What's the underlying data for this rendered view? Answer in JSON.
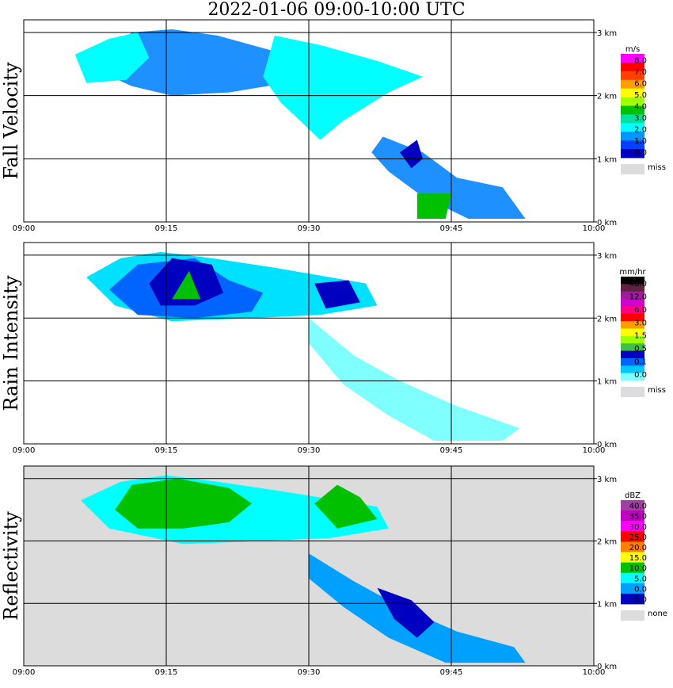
{
  "title": "2022-01-06   09:00-10:00 UTC",
  "chart_data": [
    {
      "type": "heatmap",
      "panel": "Fall Velocity",
      "ylabel": "Fall Velocity",
      "x_ticks": [
        "09:00",
        "09:15",
        "09:30",
        "09:45",
        "10:00"
      ],
      "y_ticks": [
        "0 km",
        "1 km",
        "2 km",
        "3 km"
      ],
      "xlim": [
        "09:00",
        "10:00"
      ],
      "ylim_km": [
        0,
        3.2
      ],
      "background": "none",
      "legend": {
        "unit": "m/s",
        "levels": [
          "8.0",
          "7.0",
          "6.0",
          "5.0",
          "4.0",
          "3.0",
          "2.0",
          "1.0",
          "0.0"
        ],
        "colors": [
          "#ff00ff",
          "#ff0000",
          "#ff4000",
          "#ffa000",
          "#ffff00",
          "#a0ff00",
          "#00c000",
          "#00e0a0",
          "#00ffff",
          "#0096ff",
          "#0040ff",
          "#0000c0"
        ],
        "missing_label": "miss",
        "missing_color": "#dcdcdc"
      },
      "features": [
        {
          "color": "#1e90ff",
          "pts": [
            [
              0.13,
              2.6
            ],
            [
              0.19,
              3.0
            ],
            [
              0.26,
              3.05
            ],
            [
              0.34,
              2.95
            ],
            [
              0.44,
              2.7
            ],
            [
              0.46,
              2.2
            ],
            [
              0.36,
              2.05
            ],
            [
              0.26,
              2.0
            ],
            [
              0.19,
              2.15
            ],
            [
              0.14,
              2.35
            ]
          ]
        },
        {
          "color": "#00ffff",
          "pts": [
            [
              0.09,
              2.65
            ],
            [
              0.15,
              2.9
            ],
            [
              0.2,
              3.0
            ],
            [
              0.22,
              2.6
            ],
            [
              0.18,
              2.25
            ],
            [
              0.11,
              2.2
            ]
          ]
        },
        {
          "color": "#00ffff",
          "pts": [
            [
              0.44,
              2.95
            ],
            [
              0.52,
              2.8
            ],
            [
              0.62,
              2.55
            ],
            [
              0.7,
              2.3
            ],
            [
              0.64,
              2.05
            ],
            [
              0.56,
              1.6
            ],
            [
              0.52,
              1.3
            ],
            [
              0.45,
              1.9
            ],
            [
              0.42,
              2.3
            ]
          ]
        },
        {
          "color": "#1e90ff",
          "pts": [
            [
              0.63,
              1.35
            ],
            [
              0.7,
              1.1
            ],
            [
              0.76,
              0.7
            ],
            [
              0.84,
              0.55
            ],
            [
              0.88,
              0.05
            ],
            [
              0.78,
              0.05
            ],
            [
              0.7,
              0.4
            ],
            [
              0.64,
              0.8
            ],
            [
              0.61,
              1.1
            ]
          ]
        },
        {
          "color": "#0000c0",
          "pts": [
            [
              0.66,
              1.1
            ],
            [
              0.69,
              1.3
            ],
            [
              0.7,
              1.0
            ],
            [
              0.68,
              0.85
            ]
          ]
        },
        {
          "color": "#00c000",
          "pts": [
            [
              0.69,
              0.45
            ],
            [
              0.75,
              0.45
            ],
            [
              0.74,
              0.05
            ],
            [
              0.69,
              0.05
            ]
          ]
        }
      ]
    },
    {
      "type": "heatmap",
      "panel": "Rain Intensity",
      "ylabel": "Rain Intensity",
      "x_ticks": [
        "09:00",
        "09:15",
        "09:30",
        "09:45",
        "10:00"
      ],
      "y_ticks": [
        "0 km",
        "1 km",
        "2 km",
        "3 km"
      ],
      "xlim": [
        "09:00",
        "10:00"
      ],
      "ylim_km": [
        0,
        3.2
      ],
      "background": "none",
      "legend": {
        "unit": "mm/hr",
        "levels": [
          "48.0",
          "12.0",
          "6.0",
          "3.0",
          "1.5",
          "0.5",
          "0.1",
          "0.0"
        ],
        "colors": [
          "#000000",
          "#602040",
          "#9c1c9c",
          "#d000d0",
          "#ff0080",
          "#ff0000",
          "#ffa000",
          "#ffff00",
          "#a0ff00",
          "#40c040",
          "#0000c0",
          "#0064ff",
          "#00c8ff",
          "#80ffff"
        ],
        "missing_label": "miss",
        "missing_color": "#dcdcdc"
      },
      "features": [
        {
          "color": "#00e0ff",
          "pts": [
            [
              0.11,
              2.65
            ],
            [
              0.17,
              2.95
            ],
            [
              0.24,
              3.05
            ],
            [
              0.33,
              2.95
            ],
            [
              0.44,
              2.8
            ],
            [
              0.6,
              2.55
            ],
            [
              0.62,
              2.2
            ],
            [
              0.52,
              2.05
            ],
            [
              0.4,
              2.0
            ],
            [
              0.26,
              1.95
            ],
            [
              0.16,
              2.2
            ]
          ]
        },
        {
          "color": "#0064ff",
          "pts": [
            [
              0.15,
              2.45
            ],
            [
              0.2,
              2.85
            ],
            [
              0.3,
              2.95
            ],
            [
              0.36,
              2.6
            ],
            [
              0.42,
              2.4
            ],
            [
              0.4,
              2.1
            ],
            [
              0.3,
              2.0
            ],
            [
              0.2,
              2.05
            ]
          ]
        },
        {
          "color": "#0000c0",
          "pts": [
            [
              0.22,
              2.55
            ],
            [
              0.26,
              2.95
            ],
            [
              0.33,
              2.85
            ],
            [
              0.35,
              2.4
            ],
            [
              0.3,
              2.2
            ],
            [
              0.24,
              2.2
            ]
          ]
        },
        {
          "color": "#0000c0",
          "pts": [
            [
              0.51,
              2.55
            ],
            [
              0.57,
              2.6
            ],
            [
              0.59,
              2.25
            ],
            [
              0.53,
              2.15
            ]
          ]
        },
        {
          "color": "#00c000",
          "pts": [
            [
              0.26,
              2.3
            ],
            [
              0.29,
              2.75
            ],
            [
              0.31,
              2.3
            ]
          ]
        },
        {
          "color": "#80ffff",
          "pts": [
            [
              0.5,
              2.0
            ],
            [
              0.58,
              1.4
            ],
            [
              0.66,
              1.0
            ],
            [
              0.76,
              0.6
            ],
            [
              0.87,
              0.25
            ],
            [
              0.84,
              0.05
            ],
            [
              0.72,
              0.05
            ],
            [
              0.64,
              0.45
            ],
            [
              0.56,
              0.95
            ],
            [
              0.5,
              1.6
            ]
          ]
        }
      ]
    },
    {
      "type": "heatmap",
      "panel": "Reflectivity",
      "ylabel": "Reflectivity",
      "x_ticks": [
        "09:00",
        "09:15",
        "09:30",
        "09:45",
        "10:00"
      ],
      "y_ticks": [
        "0 km",
        "1 km",
        "2 km",
        "3 km"
      ],
      "xlim": [
        "09:00",
        "10:00"
      ],
      "ylim_km": [
        0,
        3.2
      ],
      "background": "#dcdcdc",
      "legend": {
        "unit": "dBZ",
        "levels": [
          "40.0",
          "35.0",
          "30.0",
          "25.0",
          "20.0",
          "15.0",
          "10.0",
          "5.0",
          "0.0",
          "-5.0"
        ],
        "colors": [
          "#a040a0",
          "#c000c0",
          "#ff00ff",
          "#ff0000",
          "#ff8000",
          "#ffff00",
          "#00c000",
          "#00ffff",
          "#00a0ff",
          "#0000c0"
        ],
        "missing_label": "none",
        "missing_color": "#dcdcdc"
      },
      "features": [
        {
          "color": "#00ffff",
          "pts": [
            [
              0.1,
              2.65
            ],
            [
              0.17,
              2.95
            ],
            [
              0.25,
              3.05
            ],
            [
              0.34,
              2.95
            ],
            [
              0.45,
              2.8
            ],
            [
              0.62,
              2.55
            ],
            [
              0.64,
              2.2
            ],
            [
              0.54,
              2.05
            ],
            [
              0.42,
              2.0
            ],
            [
              0.28,
              1.95
            ],
            [
              0.15,
              2.2
            ]
          ]
        },
        {
          "color": "#00c000",
          "pts": [
            [
              0.16,
              2.5
            ],
            [
              0.19,
              2.9
            ],
            [
              0.27,
              3.0
            ],
            [
              0.36,
              2.85
            ],
            [
              0.4,
              2.6
            ],
            [
              0.36,
              2.3
            ],
            [
              0.28,
              2.2
            ],
            [
              0.2,
              2.2
            ]
          ]
        },
        {
          "color": "#00c000",
          "pts": [
            [
              0.51,
              2.6
            ],
            [
              0.55,
              2.9
            ],
            [
              0.59,
              2.7
            ],
            [
              0.62,
              2.35
            ],
            [
              0.55,
              2.2
            ]
          ]
        },
        {
          "color": "#00a0ff",
          "pts": [
            [
              0.5,
              1.8
            ],
            [
              0.58,
              1.35
            ],
            [
              0.66,
              0.95
            ],
            [
              0.76,
              0.55
            ],
            [
              0.86,
              0.3
            ],
            [
              0.88,
              0.05
            ],
            [
              0.74,
              0.05
            ],
            [
              0.64,
              0.45
            ],
            [
              0.56,
              0.95
            ],
            [
              0.5,
              1.4
            ]
          ]
        },
        {
          "color": "#0000c0",
          "pts": [
            [
              0.62,
              1.25
            ],
            [
              0.68,
              1.05
            ],
            [
              0.72,
              0.7
            ],
            [
              0.69,
              0.45
            ],
            [
              0.65,
              0.75
            ]
          ]
        }
      ]
    }
  ]
}
